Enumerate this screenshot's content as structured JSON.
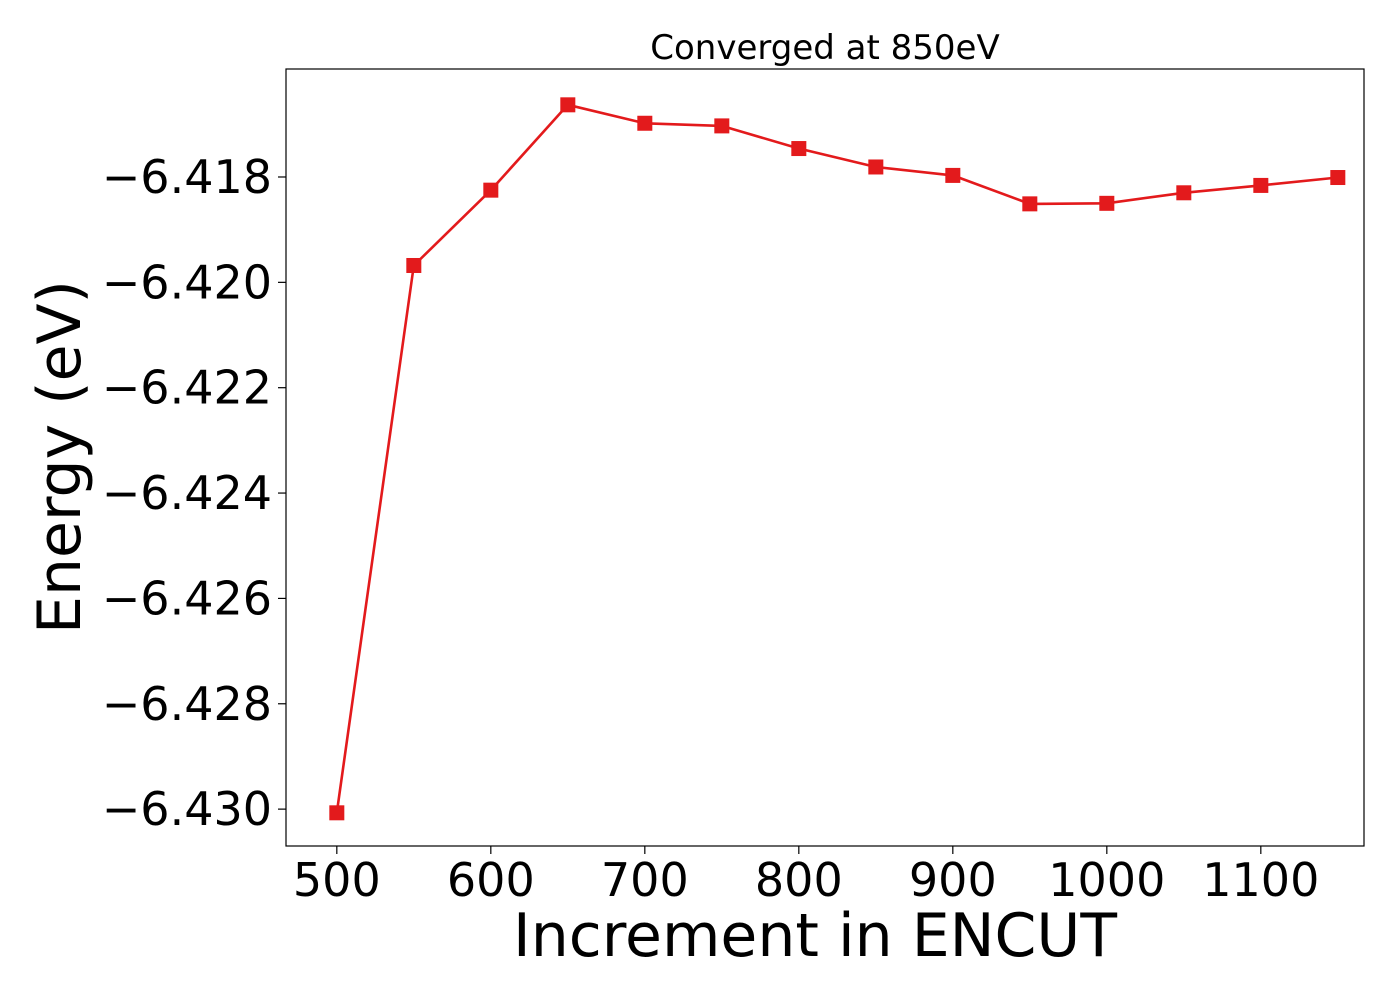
{
  "chart_data": {
    "type": "line",
    "title": "Converged at 850eV",
    "xlabel": "Increment in ENCUT",
    "ylabel": "Energy (eV)",
    "xlim": [
      467,
      1167
    ],
    "ylim": [
      -6.4307,
      -6.41595
    ],
    "x_ticks": [
      500,
      600,
      700,
      800,
      900,
      1000,
      1100
    ],
    "y_ticks": [
      -6.418,
      -6.42,
      -6.422,
      -6.424,
      -6.426,
      -6.428,
      -6.43
    ],
    "x_tick_labels": [
      "500",
      "600",
      "700",
      "800",
      "900",
      "1000",
      "1100"
    ],
    "y_tick_labels": [
      "−6.418",
      "−6.420",
      "−6.422",
      "−6.424",
      "−6.426",
      "−6.428",
      "−6.430"
    ],
    "grid": false,
    "series": [
      {
        "color": "#e31a1c",
        "marker": "square",
        "x": [
          500,
          550,
          600,
          650,
          700,
          750,
          800,
          850,
          900,
          950,
          1000,
          1050,
          1100,
          1150
        ],
        "y": [
          -6.43007,
          -6.41968,
          -6.41825,
          -6.41663,
          -6.41698,
          -6.41703,
          -6.41746,
          -6.41781,
          -6.41797,
          -6.41851,
          -6.4185,
          -6.4183,
          -6.41816,
          -6.41801
        ]
      }
    ]
  }
}
